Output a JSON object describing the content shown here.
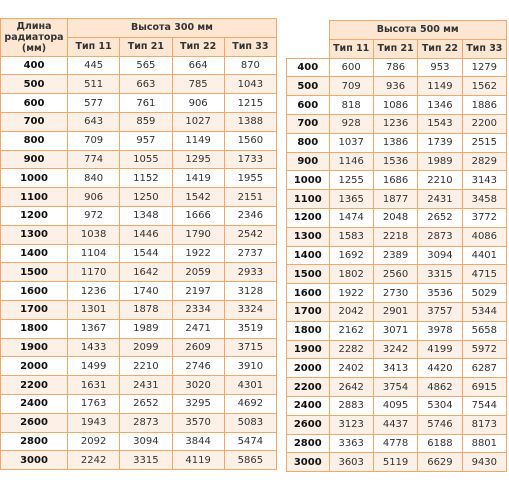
{
  "tables": [
    {
      "corner": "Длина радиатора (мм)",
      "title": "Высота 300 мм",
      "types": [
        "Тип 11",
        "Тип 21",
        "Тип 22",
        "Тип 33"
      ],
      "rows": [
        [
          "400",
          "445",
          "565",
          "664",
          "870"
        ],
        [
          "500",
          "511",
          "663",
          "785",
          "1043"
        ],
        [
          "600",
          "577",
          "761",
          "906",
          "1215"
        ],
        [
          "700",
          "643",
          "859",
          "1027",
          "1388"
        ],
        [
          "800",
          "709",
          "957",
          "1149",
          "1560"
        ],
        [
          "900",
          "774",
          "1055",
          "1295",
          "1733"
        ],
        [
          "1000",
          "840",
          "1152",
          "1419",
          "1955"
        ],
        [
          "1100",
          "906",
          "1250",
          "1542",
          "2151"
        ],
        [
          "1200",
          "972",
          "1348",
          "1666",
          "2346"
        ],
        [
          "1300",
          "1038",
          "1446",
          "1790",
          "2542"
        ],
        [
          "1400",
          "1104",
          "1544",
          "1922",
          "2737"
        ],
        [
          "1500",
          "1170",
          "1642",
          "2059",
          "2933"
        ],
        [
          "1600",
          "1236",
          "1740",
          "2197",
          "3128"
        ],
        [
          "1700",
          "1301",
          "1878",
          "2334",
          "3324"
        ],
        [
          "1800",
          "1367",
          "1989",
          "2471",
          "3519"
        ],
        [
          "1900",
          "1433",
          "2099",
          "2609",
          "3715"
        ],
        [
          "2000",
          "1499",
          "2210",
          "2746",
          "3910"
        ],
        [
          "2200",
          "1631",
          "2431",
          "3020",
          "4301"
        ],
        [
          "2400",
          "1763",
          "2652",
          "3295",
          "4692"
        ],
        [
          "2600",
          "1943",
          "2873",
          "3570",
          "5083"
        ],
        [
          "2800",
          "2092",
          "3094",
          "3844",
          "5474"
        ],
        [
          "3000",
          "2242",
          "3315",
          "4119",
          "5865"
        ]
      ]
    },
    {
      "title": "Высота 500 мм",
      "types": [
        "Тип 11",
        "Тип 21",
        "Тип 22",
        "Тип 33"
      ],
      "rows": [
        [
          "400",
          "600",
          "786",
          "953",
          "1279"
        ],
        [
          "500",
          "709",
          "936",
          "1149",
          "1562"
        ],
        [
          "600",
          "818",
          "1086",
          "1346",
          "1886"
        ],
        [
          "700",
          "928",
          "1236",
          "1543",
          "2200"
        ],
        [
          "800",
          "1037",
          "1386",
          "1739",
          "2515"
        ],
        [
          "900",
          "1146",
          "1536",
          "1989",
          "2829"
        ],
        [
          "1000",
          "1255",
          "1686",
          "2210",
          "3143"
        ],
        [
          "1100",
          "1365",
          "1877",
          "2431",
          "3458"
        ],
        [
          "1200",
          "1474",
          "2048",
          "2652",
          "3772"
        ],
        [
          "1300",
          "1583",
          "2218",
          "2873",
          "4086"
        ],
        [
          "1400",
          "1692",
          "2389",
          "3094",
          "4401"
        ],
        [
          "1500",
          "1802",
          "2560",
          "3315",
          "4715"
        ],
        [
          "1600",
          "1922",
          "2730",
          "3536",
          "5029"
        ],
        [
          "1700",
          "2042",
          "2901",
          "3757",
          "5344"
        ],
        [
          "1800",
          "2162",
          "3071",
          "3978",
          "5658"
        ],
        [
          "1900",
          "2282",
          "3242",
          "4199",
          "5972"
        ],
        [
          "2000",
          "2402",
          "3413",
          "4420",
          "6287"
        ],
        [
          "2200",
          "2642",
          "3754",
          "4862",
          "6915"
        ],
        [
          "2400",
          "2883",
          "4095",
          "5304",
          "7544"
        ],
        [
          "2600",
          "3123",
          "4437",
          "5746",
          "8173"
        ],
        [
          "2800",
          "3363",
          "4778",
          "6188",
          "8801"
        ],
        [
          "3000",
          "3603",
          "5119",
          "6629",
          "9430"
        ]
      ]
    }
  ]
}
